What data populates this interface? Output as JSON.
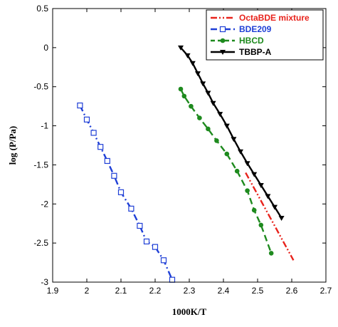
{
  "chart_data": {
    "type": "line",
    "xlabel": "1000K/T",
    "ylabel": "log (P/Pa)",
    "xlim": [
      1.9,
      2.7
    ],
    "ylim": [
      -3,
      0.5
    ],
    "xticks": [
      1.9,
      2.0,
      2.1,
      2.2,
      2.3,
      2.4,
      2.5,
      2.6,
      2.7
    ],
    "xtick_labels": [
      "1.9",
      "2",
      "2.1",
      "2.2",
      "2.3",
      "2.4",
      "2.5",
      "2.6",
      "2.7"
    ],
    "yticks": [
      0.5,
      0,
      -0.5,
      -1,
      -1.5,
      -2,
      -2.5,
      -3
    ],
    "ytick_labels": [
      "0.5",
      "0",
      "-0.5",
      "-1",
      "-1.5",
      "-2",
      "-2.5",
      "-3"
    ],
    "grid": false,
    "legend_position": "top-right",
    "series": [
      {
        "name": "OctaBDE mixture",
        "color": "#e8231c",
        "line_style": "dash-dot-dot",
        "marker": "none",
        "x": [
          2.465,
          2.605
        ],
        "y": [
          -1.6,
          -2.72
        ]
      },
      {
        "name": "BDE209",
        "color": "#1f3fd6",
        "line_style": "dash-dot",
        "marker": "open-square",
        "x": [
          1.98,
          2.0,
          2.02,
          2.04,
          2.06,
          2.08,
          2.1,
          2.13,
          2.155,
          2.175,
          2.2,
          2.225,
          2.25
        ],
        "y": [
          -0.74,
          -0.92,
          -1.09,
          -1.27,
          -1.45,
          -1.64,
          -1.85,
          -2.06,
          -2.28,
          -2.48,
          -2.55,
          -2.72,
          -2.97
        ]
      },
      {
        "name": "HBCD",
        "color": "#1e8a1e",
        "line_style": "dashed",
        "marker": "filled-circle",
        "x": [
          2.275,
          2.285,
          2.305,
          2.33,
          2.355,
          2.38,
          2.41,
          2.44,
          2.47,
          2.49,
          2.51,
          2.54
        ],
        "y": [
          -0.53,
          -0.62,
          -0.75,
          -0.9,
          -1.04,
          -1.19,
          -1.36,
          -1.58,
          -1.83,
          -2.08,
          -2.27,
          -2.63
        ]
      },
      {
        "name": "TBBP-A",
        "color": "#000000",
        "line_style": "solid",
        "marker": "filled-triangle",
        "x": [
          2.275,
          2.295,
          2.31,
          2.325,
          2.34,
          2.355,
          2.37,
          2.39,
          2.41,
          2.43,
          2.45,
          2.47,
          2.49,
          2.51,
          2.53,
          2.55,
          2.57
        ],
        "y": [
          0.0,
          -0.1,
          -0.2,
          -0.33,
          -0.46,
          -0.58,
          -0.71,
          -0.85,
          -1.0,
          -1.17,
          -1.33,
          -1.48,
          -1.62,
          -1.76,
          -1.9,
          -2.04,
          -2.18
        ]
      }
    ]
  }
}
